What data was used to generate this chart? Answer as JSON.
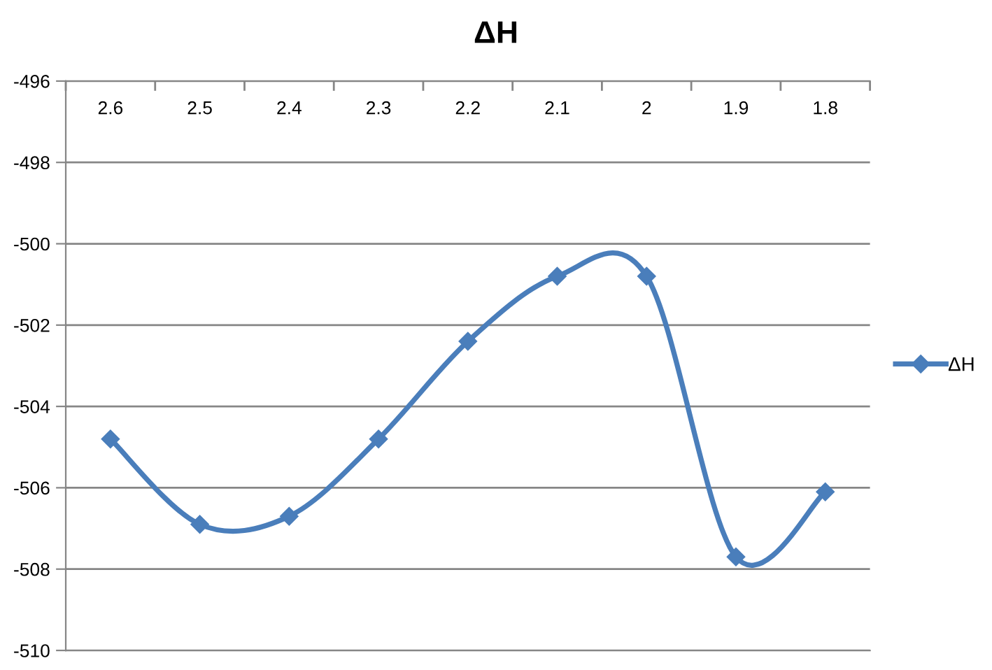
{
  "chart_data": {
    "type": "line",
    "title": "ΔH",
    "categories": [
      "2.6",
      "2.5",
      "2.4",
      "2.3",
      "2.2",
      "2.1",
      "2",
      "1.9",
      "1.8"
    ],
    "series": [
      {
        "name": "ΔH",
        "color": "#4a7ebb",
        "values": [
          -504.8,
          -506.9,
          -506.7,
          -504.8,
          -502.4,
          -500.8,
          -500.8,
          -507.7,
          -506.1
        ]
      }
    ],
    "ylim": [
      -510,
      -496
    ],
    "yticks": [
      -510,
      -508,
      -506,
      -504,
      -502,
      -500,
      -498,
      -496
    ],
    "grid": "y",
    "legend": "right",
    "marker": "diamond",
    "line_style": "solid"
  }
}
